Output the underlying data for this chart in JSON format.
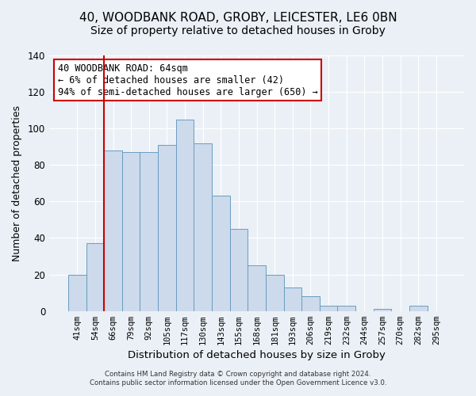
{
  "title": "40, WOODBANK ROAD, GROBY, LEICESTER, LE6 0BN",
  "subtitle": "Size of property relative to detached houses in Groby",
  "xlabel": "Distribution of detached houses by size in Groby",
  "ylabel": "Number of detached properties",
  "bar_labels": [
    "41sqm",
    "54sqm",
    "66sqm",
    "79sqm",
    "92sqm",
    "105sqm",
    "117sqm",
    "130sqm",
    "143sqm",
    "155sqm",
    "168sqm",
    "181sqm",
    "193sqm",
    "206sqm",
    "219sqm",
    "232sqm",
    "244sqm",
    "257sqm",
    "270sqm",
    "282sqm",
    "295sqm"
  ],
  "bar_heights": [
    20,
    37,
    88,
    87,
    87,
    91,
    105,
    92,
    63,
    45,
    25,
    20,
    13,
    8,
    3,
    3,
    0,
    1,
    0,
    3,
    0
  ],
  "bar_color": "#ccdaeb",
  "bar_edge_color": "#6a9dc0",
  "vline_x_idx": 2,
  "vline_color": "#cc0000",
  "ylim": [
    0,
    140
  ],
  "yticks": [
    0,
    20,
    40,
    60,
    80,
    100,
    120,
    140
  ],
  "annotation_text": "40 WOODBANK ROAD: 64sqm\n← 6% of detached houses are smaller (42)\n94% of semi-detached houses are larger (650) →",
  "annotation_box_color": "#ffffff",
  "annotation_box_edge": "#cc0000",
  "footer1": "Contains HM Land Registry data © Crown copyright and database right 2024.",
  "footer2": "Contains public sector information licensed under the Open Government Licence v3.0.",
  "background_color": "#eaf0f6",
  "title_fontsize": 11,
  "subtitle_fontsize": 10
}
